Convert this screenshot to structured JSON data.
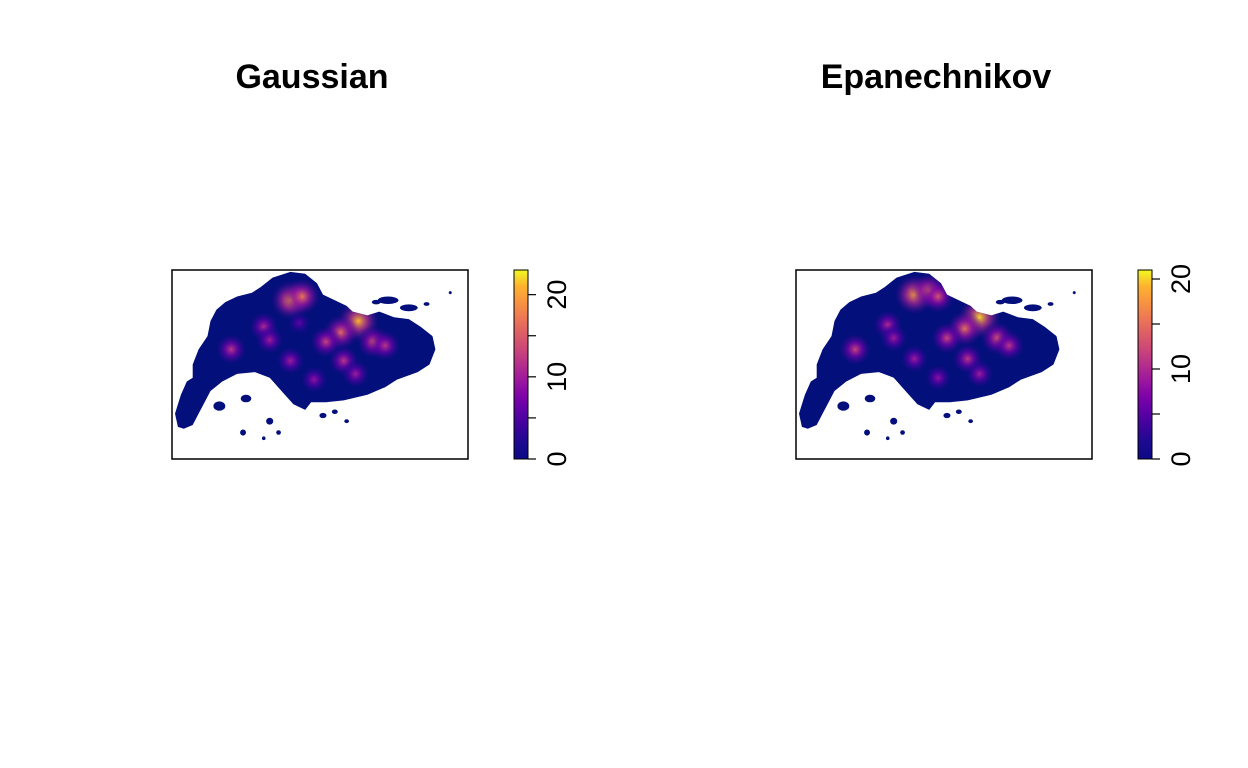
{
  "colors": {
    "scale": [
      "#0d0887",
      "#1b0a8f",
      "#3a049a",
      "#5c01a6",
      "#7e03a8",
      "#9c179e",
      "#b52f8c",
      "#cc4778",
      "#de5f65",
      "#ed7953",
      "#f89540",
      "#fdb42f",
      "#f0f921"
    ],
    "land_base": "#030f7a",
    "frame": "#000000"
  },
  "chart_data": [
    {
      "type": "heatmap",
      "title": "Gaussian",
      "legend": "right",
      "zlim": [
        0,
        23
      ],
      "legend_ticks": [
        0,
        5,
        10,
        15,
        20
      ],
      "legend_tick_labels": [
        "0",
        "",
        "10",
        "",
        "20"
      ],
      "hotspots": [
        {
          "x": 0.4,
          "y": 0.16,
          "value": 19
        },
        {
          "x": 0.44,
          "y": 0.14,
          "value": 17
        },
        {
          "x": 0.63,
          "y": 0.27,
          "value": 21
        },
        {
          "x": 0.57,
          "y": 0.33,
          "value": 16
        },
        {
          "x": 0.52,
          "y": 0.38,
          "value": 13
        },
        {
          "x": 0.68,
          "y": 0.38,
          "value": 14
        },
        {
          "x": 0.72,
          "y": 0.4,
          "value": 12
        },
        {
          "x": 0.31,
          "y": 0.3,
          "value": 11
        },
        {
          "x": 0.33,
          "y": 0.37,
          "value": 10
        },
        {
          "x": 0.2,
          "y": 0.42,
          "value": 12
        },
        {
          "x": 0.4,
          "y": 0.48,
          "value": 10
        },
        {
          "x": 0.58,
          "y": 0.48,
          "value": 12
        },
        {
          "x": 0.62,
          "y": 0.55,
          "value": 10
        },
        {
          "x": 0.48,
          "y": 0.58,
          "value": 9
        },
        {
          "x": 0.43,
          "y": 0.28,
          "value": 6
        }
      ]
    },
    {
      "type": "heatmap",
      "title": "Epanechnikov",
      "legend": "right",
      "zlim": [
        0,
        21
      ],
      "legend_ticks": [
        0,
        5,
        10,
        15,
        20
      ],
      "legend_tick_labels": [
        "0",
        "",
        "10",
        "",
        "20"
      ],
      "hotspots": [
        {
          "x": 0.4,
          "y": 0.13,
          "value": 18
        },
        {
          "x": 0.45,
          "y": 0.11,
          "value": 15
        },
        {
          "x": 0.48,
          "y": 0.14,
          "value": 13
        },
        {
          "x": 0.62,
          "y": 0.25,
          "value": 20
        },
        {
          "x": 0.57,
          "y": 0.31,
          "value": 15
        },
        {
          "x": 0.51,
          "y": 0.36,
          "value": 12
        },
        {
          "x": 0.68,
          "y": 0.36,
          "value": 13
        },
        {
          "x": 0.72,
          "y": 0.4,
          "value": 11
        },
        {
          "x": 0.31,
          "y": 0.29,
          "value": 10
        },
        {
          "x": 0.33,
          "y": 0.36,
          "value": 9
        },
        {
          "x": 0.2,
          "y": 0.42,
          "value": 12
        },
        {
          "x": 0.4,
          "y": 0.47,
          "value": 9
        },
        {
          "x": 0.58,
          "y": 0.47,
          "value": 11
        },
        {
          "x": 0.62,
          "y": 0.55,
          "value": 9
        },
        {
          "x": 0.48,
          "y": 0.57,
          "value": 8
        }
      ]
    }
  ]
}
